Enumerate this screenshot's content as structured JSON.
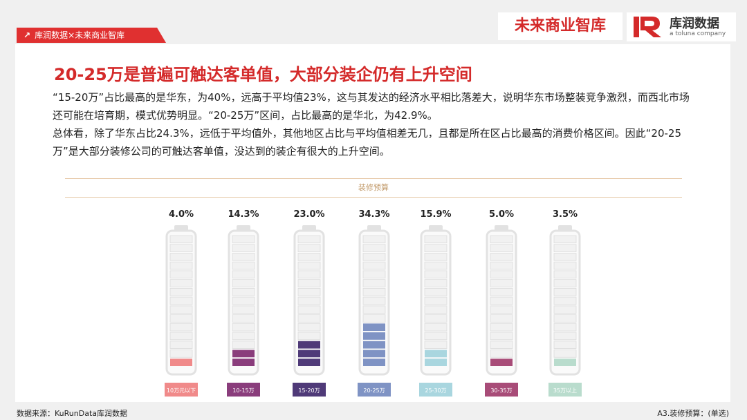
{
  "brand_tag": "库润数据×未来商业智库",
  "logos": {
    "left": "未来商业智库",
    "right_name": "库润数据",
    "right_sub": "a toluna company"
  },
  "title": "20-25万是普遍可触达客单值，大部分装企仍有上升空间",
  "paragraph1": "“15-20万”占比最高的是华东，为40%，远高于平均值23%，这与其发达的经济水平相比落差大，说明华东市场整装竞争激烈，而西北市场还可能在培育期，模式优势明显。“20-25万”区间，占比最高的是华北，为42.9%。",
  "paragraph2": "总体看，除了华东占比24.3%，远低于平均值外，其他地区占比与平均值相差无几，且都是所在区占比最高的消费价格区间。因此“20-25万”是大部分装修公司的可触达客单值，没达到的装企有很大的上升空间。",
  "footer_source": "数据来源：KuRunData库润数据",
  "footer_note": "A3.装修预算：(单选)",
  "chart_data": {
    "type": "bar",
    "title": "装修预算",
    "categories": [
      "10万元以下",
      "10-15万",
      "15-20万",
      "20-25万",
      "25-30万",
      "30-35万",
      "35万以上"
    ],
    "values": [
      4.0,
      14.3,
      23.0,
      34.3,
      15.9,
      5.0,
      3.5
    ],
    "value_labels": [
      "4.0%",
      "14.3%",
      "23.0%",
      "34.3%",
      "15.9%",
      "5.0%",
      "3.5%"
    ],
    "colors": [
      "#f08a8a",
      "#8a3d7c",
      "#4f3a78",
      "#7f93c4",
      "#a9d6df",
      "#a84c78",
      "#b9dccd"
    ],
    "ylim": [
      0,
      100
    ]
  }
}
